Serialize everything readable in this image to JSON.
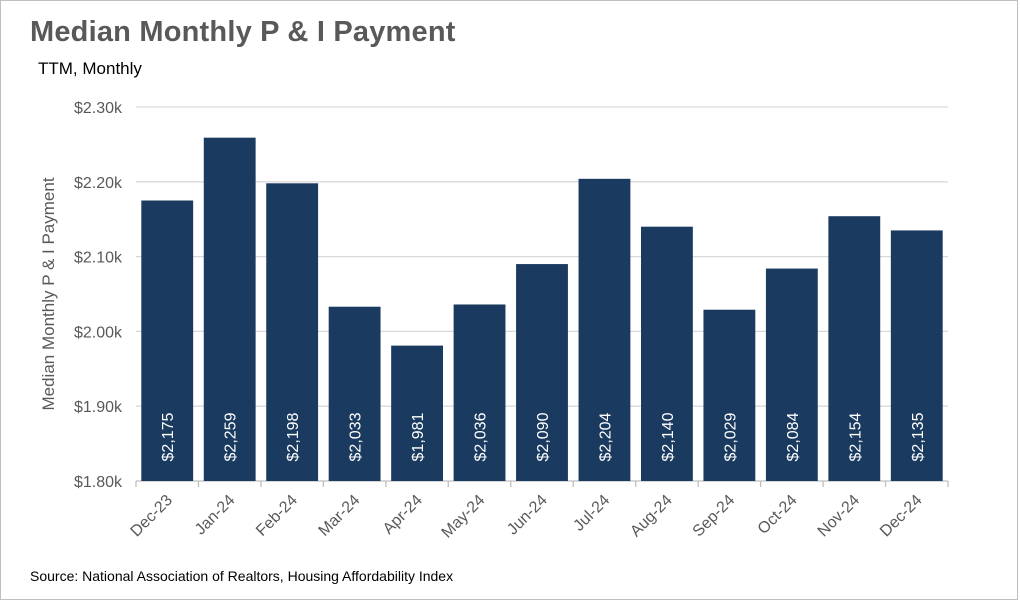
{
  "header": {
    "title": "Median Monthly P & I Payment",
    "subtitle": "TTM, Monthly"
  },
  "footer": {
    "source": "Source: National Association of Realtors, Housing Affordability Index"
  },
  "colors": {
    "bar": "#1a3a5f",
    "grid": "#d9d9d9",
    "axis_text": "#595959"
  },
  "chart_data": {
    "type": "bar",
    "title": "Median Monthly P & I Payment",
    "subtitle": "TTM, Monthly",
    "xlabel": "",
    "ylabel": "Median Monthly P & I Payment",
    "categories": [
      "Dec-23",
      "Jan-24",
      "Feb-24",
      "Mar-24",
      "Apr-24",
      "May-24",
      "Jun-24",
      "Jul-24",
      "Aug-24",
      "Sep-24",
      "Oct-24",
      "Nov-24",
      "Dec-24"
    ],
    "values": [
      2175,
      2259,
      2198,
      2033,
      1981,
      2036,
      2090,
      2204,
      2140,
      2029,
      2084,
      2154,
      2135
    ],
    "data_labels": [
      "$2,175",
      "$2,259",
      "$2,198",
      "$2,033",
      "$1,981",
      "$2,036",
      "$2,090",
      "$2,204",
      "$2,140",
      "$2,029",
      "$2,084",
      "$2,154",
      "$2,135"
    ],
    "ylim": [
      1800,
      2300
    ],
    "yticks": [
      1800,
      1900,
      2000,
      2100,
      2200,
      2300
    ],
    "ytick_labels": [
      "$1.80k",
      "$1.90k",
      "$2.00k",
      "$2.10k",
      "$2.20k",
      "$2.30k"
    ],
    "grid": true,
    "legend": "none"
  }
}
